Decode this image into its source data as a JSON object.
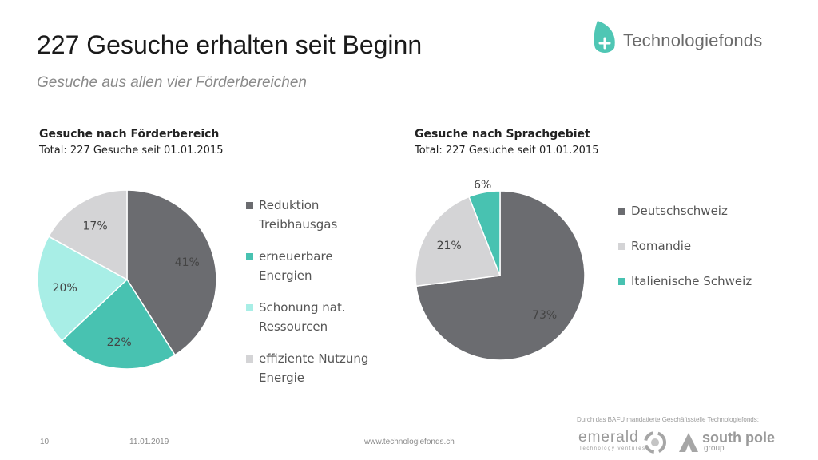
{
  "slide": {
    "title": "227 Gesuche erhalten seit Beginn",
    "subtitle": "Gesuche aus allen vier Förderbereichen"
  },
  "logo": {
    "text": "Technologiefonds",
    "icon": "leaf-plus-icon",
    "color": "#4fc6b4"
  },
  "chart_data": [
    {
      "type": "pie",
      "title": "Gesuche nach Förderbereich",
      "subtitle": "Total: 227 Gesuche seit 01.01.2015",
      "categories": [
        "Reduktion Treibhausgas",
        "erneuerbare Energien",
        "Schonung nat. Ressourcen",
        "effiziente Nutzung Energie"
      ],
      "legend_lines": [
        [
          "Reduktion",
          "Treibhausgas"
        ],
        [
          "erneuerbare",
          "Energien"
        ],
        [
          "Schonung nat.",
          "Ressourcen"
        ],
        [
          "effiziente Nutzung",
          "Energie"
        ]
      ],
      "values": [
        41,
        22,
        20,
        17
      ],
      "labels": [
        "41%",
        "22%",
        "20%",
        "17%"
      ],
      "colors": [
        "#6b6c70",
        "#48c2b1",
        "#a8eee6",
        "#d4d4d6"
      ],
      "legend": "right"
    },
    {
      "type": "pie",
      "title": "Gesuche nach Sprachgebiet",
      "subtitle": "Total: 227 Gesuche seit 01.01.2015",
      "categories": [
        "Deutschschweiz",
        "Romandie",
        "Italienische Schweiz"
      ],
      "legend_lines": [
        [
          "Deutschschweiz"
        ],
        [
          "Romandie"
        ],
        [
          "Italienische Schweiz"
        ]
      ],
      "values": [
        73,
        21,
        6
      ],
      "labels": [
        "73%",
        "21%",
        "6%"
      ],
      "colors": [
        "#6b6c70",
        "#d4d4d6",
        "#48c2b1"
      ],
      "legend": "right"
    }
  ],
  "footer": {
    "page": "10",
    "date": "11.01.2019",
    "url": "www.technologiefonds.ch",
    "note": "Durch das BAFU mandatierte Geschäftsstelle Technologiefonds:",
    "emerald": "emerald",
    "emerald_sub": "Technology ventures",
    "southpole": "south pole",
    "southpole_sub": "group"
  }
}
